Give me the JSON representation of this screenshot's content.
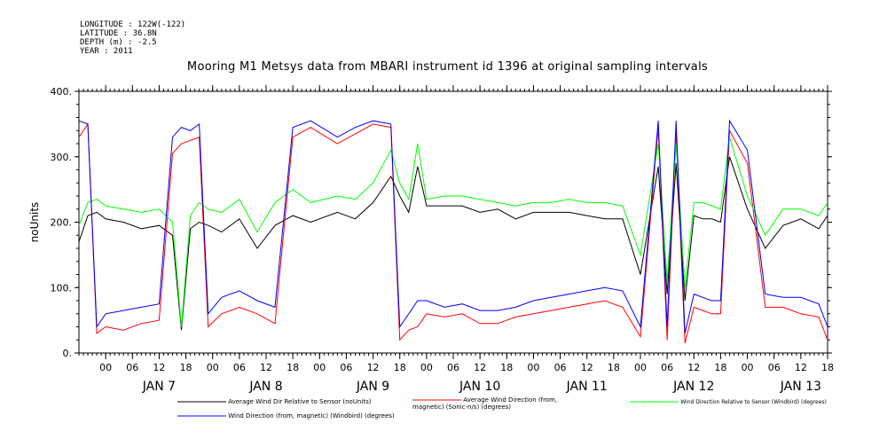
{
  "header": {
    "longitude": "LONGITUDE : 122W(-122)",
    "latitude": "LATITUDE : 36.8N",
    "depth": "DEPTH (m) : -2.5",
    "year": "YEAR : 2011"
  },
  "chart_data": {
    "type": "line",
    "title": "Mooring M1 Metsys data from MBARI instrument id 1396 at original sampling intervals",
    "ylabel": "noUnits",
    "xlabel": "",
    "ylim": [
      0,
      400
    ],
    "yticks": [
      0,
      100,
      200,
      300,
      400
    ],
    "ytick_labels": [
      "0.",
      "100.",
      "200.",
      "300.",
      "400."
    ],
    "xlim_hours": [
      -6,
      162
    ],
    "hour_tick_labels": [
      "00",
      "06",
      "12",
      "18",
      "00",
      "06",
      "12",
      "18",
      "00",
      "06",
      "12",
      "18",
      "00",
      "06",
      "12",
      "18",
      "00",
      "06",
      "12",
      "18",
      "00",
      "06",
      "12",
      "18",
      "00",
      "06",
      "12",
      "18"
    ],
    "day_labels": [
      "JAN  7",
      "JAN  8",
      "JAN  9",
      "JAN 10",
      "JAN 11",
      "JAN 12",
      "JAN 13"
    ],
    "grid": false,
    "legend_position": "bottom",
    "series": [
      {
        "name": "Average Wind Dir Relative to Sensor (noUnits)",
        "color": "#000000",
        "x_hours": [
          -6,
          -4,
          -2,
          0,
          4,
          8,
          12,
          15,
          17,
          19,
          21,
          23,
          26,
          30,
          34,
          38,
          42,
          46,
          52,
          56,
          60,
          64,
          66,
          68,
          70,
          72,
          76,
          80,
          84,
          88,
          92,
          96,
          100,
          104,
          108,
          112,
          116,
          120,
          124,
          126,
          128,
          130,
          132,
          134,
          136,
          138,
          140,
          144,
          148,
          152,
          156,
          160,
          162
        ],
        "values": [
          170,
          210,
          215,
          205,
          200,
          190,
          195,
          180,
          35,
          190,
          200,
          195,
          185,
          205,
          160,
          195,
          210,
          200,
          215,
          205,
          230,
          270,
          240,
          215,
          285,
          225,
          225,
          225,
          215,
          220,
          205,
          215,
          215,
          215,
          210,
          205,
          205,
          120,
          285,
          90,
          290,
          80,
          210,
          205,
          205,
          200,
          300,
          220,
          160,
          195,
          205,
          190,
          210
        ]
      },
      {
        "name": "Average Wind Direction (from, magnetic) (Sonic-n/s) (degrees)",
        "color": "#ff0000",
        "x_hours": [
          -6,
          -4,
          -2,
          0,
          4,
          8,
          12,
          15,
          17,
          19,
          21,
          23,
          26,
          30,
          34,
          38,
          42,
          46,
          52,
          56,
          60,
          64,
          66,
          68,
          70,
          72,
          76,
          80,
          84,
          88,
          92,
          96,
          100,
          104,
          108,
          112,
          116,
          120,
          124,
          126,
          128,
          130,
          132,
          134,
          136,
          138,
          140,
          144,
          148,
          152,
          156,
          160,
          162
        ],
        "values": [
          330,
          350,
          30,
          40,
          35,
          45,
          50,
          305,
          320,
          325,
          330,
          40,
          60,
          70,
          60,
          45,
          330,
          345,
          320,
          335,
          350,
          345,
          20,
          35,
          40,
          60,
          55,
          60,
          45,
          45,
          55,
          60,
          65,
          70,
          75,
          80,
          70,
          25,
          345,
          20,
          340,
          15,
          70,
          65,
          60,
          60,
          340,
          290,
          70,
          70,
          60,
          55,
          20
        ]
      },
      {
        "name": "Wind Direction Relative to Sensor (Windbird) (degrees)",
        "color": "#00ff00",
        "x_hours": [
          -6,
          -4,
          -2,
          0,
          4,
          8,
          12,
          15,
          17,
          19,
          21,
          23,
          26,
          30,
          34,
          38,
          42,
          46,
          52,
          56,
          60,
          64,
          66,
          68,
          70,
          72,
          76,
          80,
          84,
          88,
          92,
          96,
          100,
          104,
          108,
          112,
          116,
          120,
          124,
          126,
          128,
          130,
          132,
          134,
          136,
          138,
          140,
          144,
          148,
          152,
          156,
          160,
          162
        ],
        "values": [
          195,
          230,
          235,
          225,
          220,
          215,
          220,
          200,
          40,
          210,
          230,
          220,
          215,
          235,
          185,
          230,
          250,
          230,
          240,
          235,
          260,
          310,
          260,
          235,
          320,
          235,
          240,
          240,
          235,
          230,
          225,
          230,
          230,
          235,
          230,
          230,
          225,
          150,
          320,
          110,
          320,
          100,
          230,
          230,
          225,
          220,
          330,
          240,
          180,
          220,
          220,
          210,
          230
        ]
      },
      {
        "name": "Wind Direction (from, magnetic) (Windbird) (degrees)",
        "color": "#0000ff",
        "x_hours": [
          -6,
          -4,
          -2,
          0,
          4,
          8,
          12,
          15,
          17,
          19,
          21,
          23,
          26,
          30,
          34,
          38,
          42,
          46,
          52,
          56,
          60,
          64,
          66,
          68,
          70,
          72,
          76,
          80,
          84,
          88,
          92,
          96,
          100,
          104,
          108,
          112,
          116,
          120,
          124,
          126,
          128,
          130,
          132,
          134,
          136,
          138,
          140,
          144,
          148,
          152,
          156,
          160,
          162
        ],
        "values": [
          355,
          350,
          40,
          60,
          65,
          70,
          75,
          330,
          345,
          340,
          350,
          60,
          85,
          95,
          80,
          70,
          345,
          355,
          330,
          345,
          355,
          350,
          40,
          60,
          80,
          80,
          70,
          75,
          65,
          65,
          70,
          80,
          85,
          90,
          95,
          100,
          95,
          40,
          355,
          40,
          355,
          30,
          90,
          85,
          80,
          80,
          355,
          310,
          90,
          85,
          85,
          75,
          40
        ]
      }
    ]
  }
}
